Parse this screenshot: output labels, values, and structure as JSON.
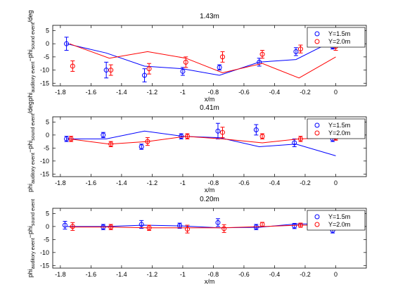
{
  "colors": {
    "series1": "#0000ff",
    "series2": "#ff0000",
    "axes": "#000000",
    "background": "#ffffff"
  },
  "chart_data": [
    {
      "type": "line",
      "title": "1.43m",
      "xlabel": "x/m",
      "ylabel_lines": [
        "−phi",
        "sound event",
        "phi",
        "auditory event",
        "/deg"
      ],
      "xlim": [
        -1.85,
        0.2
      ],
      "ylim": [
        -16,
        7
      ],
      "xticks": [
        "-1.8",
        "-1.6",
        "-1.4",
        "-1.2",
        "-1",
        "-0.8",
        "-0.6",
        "-0.4",
        "-0.2",
        "0"
      ],
      "yticks": [
        "5",
        "0",
        "-5",
        "-10",
        "-15"
      ],
      "grid": false,
      "legend_position": "top-right",
      "series": [
        {
          "name": "Y=1.5m",
          "color": "#0000ff",
          "line": {
            "x": [
              -1.76,
              -1.5,
              -1.25,
              -1.0,
              -0.76,
              -0.5,
              -0.26,
              -0.02
            ],
            "y": [
              0,
              -3.5,
              -8.5,
              -9.5,
              -12,
              -7,
              -6,
              1
            ]
          },
          "points": {
            "x": [
              -1.76,
              -1.5,
              -1.25,
              -1.0,
              -0.76,
              -0.5,
              -0.26,
              -0.02
            ],
            "y": [
              0,
              -10,
              -12,
              -10.5,
              -9,
              -7,
              -3,
              -1
            ],
            "err": [
              2.5,
              3,
              2.5,
              1.5,
              1,
              1.5,
              1.5,
              1
            ]
          }
        },
        {
          "name": "Y=2.0m",
          "color": "#ff0000",
          "line": {
            "x": [
              -1.74,
              -1.48,
              -1.23,
              -0.98,
              -0.74,
              -0.48,
              -0.24,
              0.0
            ],
            "y": [
              0,
              -5.5,
              -3,
              -5.5,
              -11,
              -7.5,
              -13,
              -5
            ]
          },
          "points": {
            "x": [
              -1.72,
              -1.47,
              -1.22,
              -0.98,
              -0.74,
              -0.48,
              -0.23,
              0.0
            ],
            "y": [
              -8.5,
              -10,
              -9.5,
              -7,
              -5,
              -4,
              -2,
              -1
            ],
            "err": [
              2,
              2,
              2,
              2,
              2,
              1.5,
              1.5,
              1.5
            ]
          }
        }
      ]
    },
    {
      "type": "line",
      "title": "0.41m",
      "xlabel": "x/m",
      "ylabel_lines": [
        "−phi",
        "sound event",
        "phi",
        "auditory event",
        "/deg"
      ],
      "xlim": [
        -1.85,
        0.2
      ],
      "ylim": [
        -16,
        7
      ],
      "xticks": [
        "-1.8",
        "-1.6",
        "-1.4",
        "-1.2",
        "-1",
        "-0.8",
        "-0.6",
        "-0.4",
        "-0.2",
        "0"
      ],
      "yticks": [
        "5",
        "0",
        "-5",
        "-10",
        "-15"
      ],
      "grid": false,
      "legend_position": "top-right",
      "series": [
        {
          "name": "Y=1.5m",
          "color": "#0000ff",
          "line": {
            "x": [
              -1.76,
              -1.5,
              -1.25,
              -1.0,
              -0.76,
              -0.5,
              -0.26,
              0.0
            ],
            "y": [
              -1.5,
              -1.5,
              1.5,
              -0.5,
              -1,
              -4.5,
              -3.5,
              -8
            ]
          },
          "points": {
            "x": [
              -1.76,
              -1.52,
              -1.27,
              -1.01,
              -0.77,
              -0.52,
              -0.27,
              -0.02
            ],
            "y": [
              -1.5,
              0,
              -4.5,
              -0.5,
              1.5,
              2,
              -3,
              -1.5
            ],
            "err": [
              1,
              1,
              1,
              1,
              3,
              2,
              1.5,
              1
            ]
          }
        },
        {
          "name": "Y=2.0m",
          "color": "#ff0000",
          "line": {
            "x": [
              -1.74,
              -1.48,
              -1.23,
              -0.98,
              -0.74,
              -0.48,
              -0.24,
              0.0
            ],
            "y": [
              -1.5,
              -3.5,
              -2.5,
              -0.5,
              -1.5,
              -3,
              -1.5,
              -1
            ]
          },
          "points": {
            "x": [
              -1.73,
              -1.47,
              -1.23,
              -0.97,
              -0.74,
              -0.48,
              -0.23,
              0.0
            ],
            "y": [
              -1.5,
              -3.5,
              -2.5,
              -0.5,
              1,
              -0.5,
              -1.5,
              -1
            ],
            "err": [
              1,
              1,
              1.5,
              1,
              2,
              1,
              1,
              1
            ]
          }
        }
      ]
    },
    {
      "type": "line",
      "title": "0.20m",
      "xlabel": "x/m",
      "ylabel_lines": [
        "−phi",
        "sound event",
        "phi",
        "auditory event",
        ""
      ],
      "xlim": [
        -1.85,
        0.2
      ],
      "ylim": [
        -16,
        7
      ],
      "xticks": [
        "-1.8",
        "-1.6",
        "-1.4",
        "-1.2",
        "-1",
        "-0.8",
        "-0.6",
        "-0.4",
        "-0.2",
        "0"
      ],
      "yticks": [
        "5",
        "0",
        "-5",
        "-10",
        "-15"
      ],
      "grid": false,
      "legend_position": "top-right",
      "series": [
        {
          "name": "Y=1.5m",
          "color": "#0000ff",
          "line": {
            "x": [
              -1.76,
              -1.5,
              -1.25,
              -1.0,
              -0.76,
              -0.5,
              -0.26,
              0.0
            ],
            "y": [
              0,
              0,
              0.5,
              0.2,
              -0.5,
              -0.3,
              1,
              1
            ]
          },
          "points": {
            "x": [
              -1.77,
              -1.52,
              -1.27,
              -1.02,
              -0.77,
              -0.52,
              -0.27,
              -0.02
            ],
            "y": [
              0.5,
              -0.2,
              0.8,
              0.3,
              1.5,
              -0.2,
              0.2,
              -1.5
            ],
            "err": [
              1.5,
              1,
              1.5,
              1,
              1.5,
              1,
              1,
              1
            ]
          }
        },
        {
          "name": "Y=2.0m",
          "color": "#ff0000",
          "line": {
            "x": [
              -1.74,
              -1.48,
              -1.23,
              -0.98,
              -0.74,
              -0.48,
              -0.24,
              0.0
            ],
            "y": [
              -0.2,
              -0.2,
              -0.5,
              -0.5,
              -0.5,
              0,
              0.5,
              0.5
            ]
          },
          "points": {
            "x": [
              -1.72,
              -1.47,
              -1.22,
              -0.97,
              -0.73,
              -0.48,
              -0.23,
              0.02
            ],
            "y": [
              0,
              -0.2,
              -0.5,
              -1,
              -0.8,
              0.8,
              0.5,
              0
            ],
            "err": [
              1.5,
              1,
              1,
              1.5,
              1.5,
              0.8,
              0.8,
              0.8
            ]
          }
        }
      ]
    }
  ]
}
